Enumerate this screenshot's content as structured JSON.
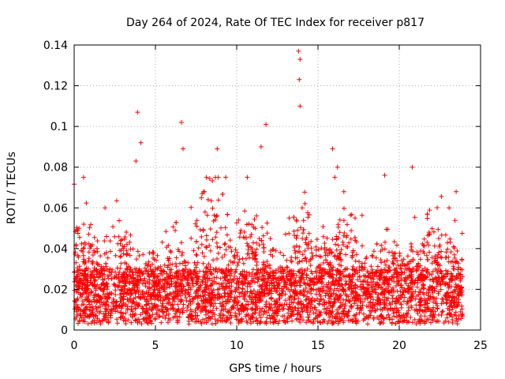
{
  "chart_data": {
    "type": "scatter",
    "title": "Day 264 of 2024, Rate Of TEC Index for receiver p817",
    "xlabel": "GPS time / hours",
    "ylabel": "ROTI / TECUs",
    "xlim": [
      0,
      25
    ],
    "ylim": [
      0,
      0.14
    ],
    "xticks": [
      "0",
      "5",
      "10",
      "15",
      "20",
      "25"
    ],
    "yticks": [
      "0",
      "0.02",
      "0.04",
      "0.06",
      "0.08",
      "0.1",
      "0.12",
      "0.14"
    ],
    "grid": true,
    "marker": "+",
    "color": "#ff0000",
    "x_range_of_points": [
      0,
      23.9
    ],
    "typical_band": [
      0.003,
      0.03
    ],
    "notable_points": [
      {
        "x": 0.3,
        "y": 0.05
      },
      {
        "x": 1.9,
        "y": 0.06
      },
      {
        "x": 3.8,
        "y": 0.083
      },
      {
        "x": 3.9,
        "y": 0.107
      },
      {
        "x": 4.1,
        "y": 0.092
      },
      {
        "x": 6.6,
        "y": 0.102
      },
      {
        "x": 6.7,
        "y": 0.089
      },
      {
        "x": 8.8,
        "y": 0.089
      },
      {
        "x": 11.5,
        "y": 0.09
      },
      {
        "x": 11.8,
        "y": 0.101
      },
      {
        "x": 13.8,
        "y": 0.137
      },
      {
        "x": 13.9,
        "y": 0.133
      },
      {
        "x": 13.85,
        "y": 0.123
      },
      {
        "x": 13.9,
        "y": 0.11
      },
      {
        "x": 15.9,
        "y": 0.089
      },
      {
        "x": 16.2,
        "y": 0.08
      },
      {
        "x": 19.1,
        "y": 0.076
      },
      {
        "x": 20.8,
        "y": 0.08
      },
      {
        "x": 23.5,
        "y": 0.068
      }
    ]
  }
}
